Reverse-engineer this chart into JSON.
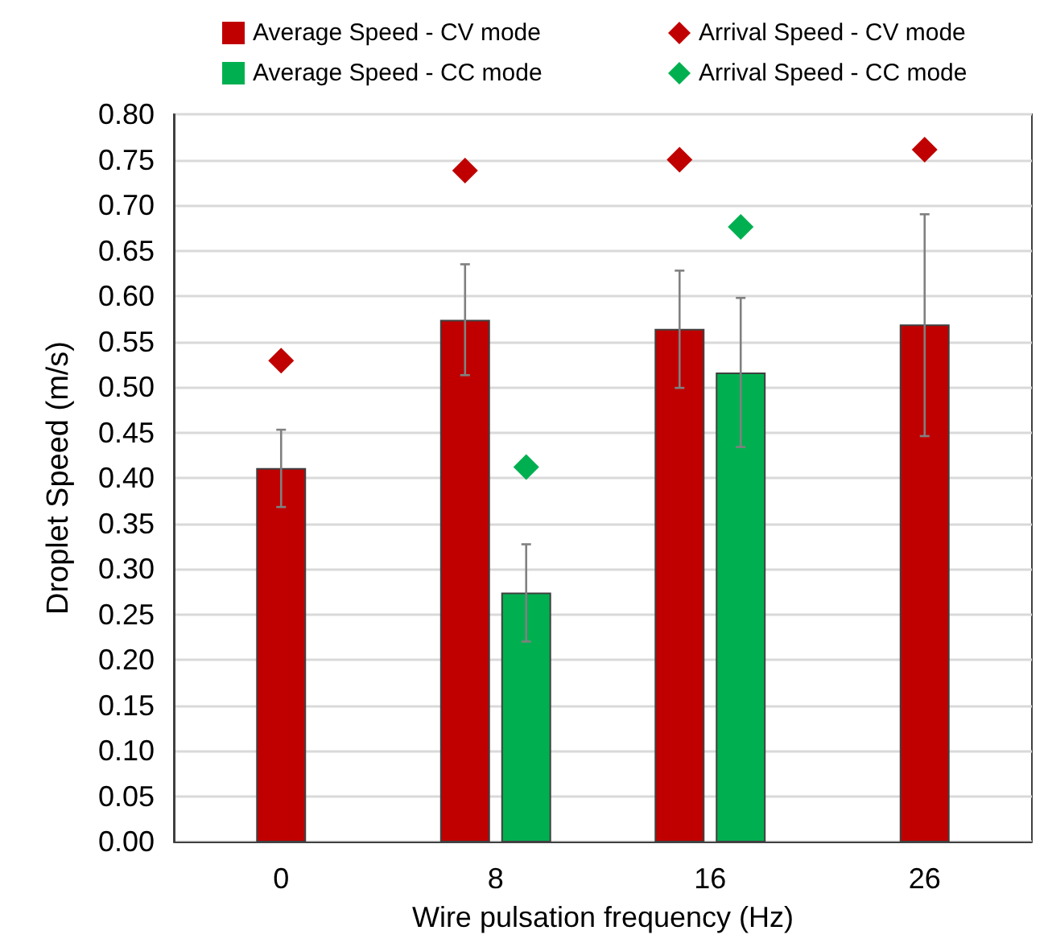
{
  "chart_data": {
    "type": "bar",
    "xlabel": "Wire pulsation frequency (Hz)",
    "ylabel": "Droplet Speed (m/s)",
    "categories": [
      "0",
      "8",
      "16",
      "26"
    ],
    "series": [
      {
        "name": "Average Speed - CV mode",
        "color": "#c00000",
        "values": [
          0.41,
          0.573,
          0.563,
          0.568
        ],
        "errors": [
          [
            0.368,
            0.453
          ],
          [
            0.513,
            0.635
          ],
          [
            0.499,
            0.628
          ],
          [
            0.446,
            0.69
          ]
        ]
      },
      {
        "name": "Average Speed - CC mode",
        "color": "#00b050",
        "values": [
          null,
          0.273,
          0.515,
          null
        ],
        "errors": [
          null,
          [
            0.22,
            0.327
          ],
          [
            0.434,
            0.598
          ],
          null
        ]
      },
      {
        "name": "Arrival Speed - CV mode",
        "type": "scatter",
        "color": "#c00000",
        "x": [
          "0",
          "8",
          "16",
          "26"
        ],
        "values": [
          0.529,
          0.738,
          0.75,
          0.761
        ],
        "marker": "diamond"
      },
      {
        "name": "Arrival Speed - CC mode",
        "type": "scatter",
        "color": "#00b050",
        "x": [
          "0",
          "8",
          "16",
          "26"
        ],
        "values": [
          null,
          0.412,
          0.676,
          null
        ],
        "marker": "diamond"
      }
    ],
    "ylim": [
      0,
      0.8
    ],
    "yticks": [
      {
        "value": 0,
        "label": "0.00"
      },
      0.05,
      {
        "value": 0.1,
        "label": "0.10"
      },
      0.15,
      {
        "value": 0.2,
        "label": "0.20"
      },
      0.25,
      {
        "value": 0.3,
        "label": "0.30"
      },
      0.35,
      {
        "value": 0.4,
        "label": "0.40"
      },
      0.45,
      {
        "value": 0.5,
        "label": "0.50"
      },
      0.55,
      {
        "value": 0.6,
        "label": "0.60"
      },
      0.65,
      {
        "value": 0.7,
        "label": "0.70"
      },
      0.75,
      {
        "value": 0.8,
        "label": "0.80"
      }
    ],
    "grid": "y",
    "legend": "top"
  }
}
